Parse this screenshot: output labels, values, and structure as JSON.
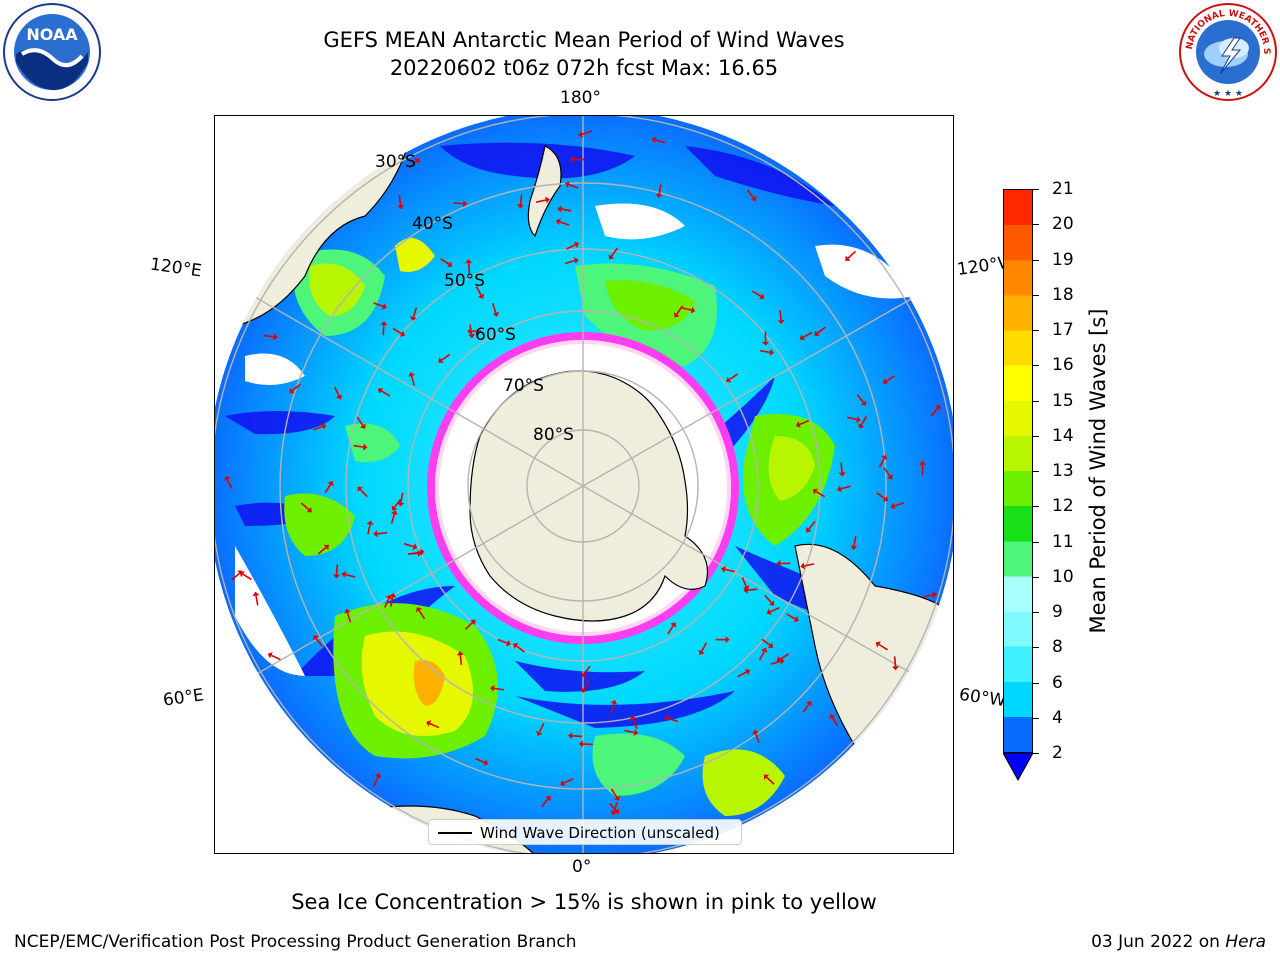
{
  "title_line1": "GEFS MEAN Antarctic Mean Period of Wind Waves",
  "title_line2": "20220602 t06z 072h fcst   Max: 16.65",
  "logos": {
    "left_icon": "noaa-logo",
    "right_icon": "nws-logo",
    "right_text": "NATIONAL WEATHER SERVICE"
  },
  "longitude_labels": {
    "top": "180°",
    "bottom": "0°",
    "upper_left": "120°E",
    "upper_right": "120°W",
    "lower_left": "60°E",
    "lower_right": "60°W"
  },
  "latitude_labels": [
    "30°S",
    "40°S",
    "50°S",
    "60°S",
    "70°S",
    "80°S"
  ],
  "legend": {
    "label": "Wind Wave Direction (unscaled)"
  },
  "colorbar": {
    "label": "Mean Period of Wind Waves [s]",
    "ticks": [
      "2",
      "4",
      "6",
      "8",
      "9",
      "10",
      "11",
      "12",
      "13",
      "14",
      "15",
      "16",
      "17",
      "18",
      "19",
      "20",
      "21"
    ],
    "colors": [
      "#0a6cff",
      "#00d8ff",
      "#3ff0ff",
      "#7ffaff",
      "#aaffff",
      "#4df57a",
      "#18e018",
      "#6cf000",
      "#b8f500",
      "#e6f800",
      "#ffff00",
      "#ffdc00",
      "#ffb000",
      "#ff8800",
      "#ff5a00",
      "#ff2800",
      "#ff0000"
    ],
    "under_color": "#0000ff"
  },
  "subtitle": "Sea Ice Concentration > 15% is shown in pink to yellow",
  "footer_left": "NCEP/EMC/Verification Post Processing Product Generation Branch",
  "footer_right_prefix": "03 Jun 2022 on ",
  "footer_right_italic": "Hera"
}
